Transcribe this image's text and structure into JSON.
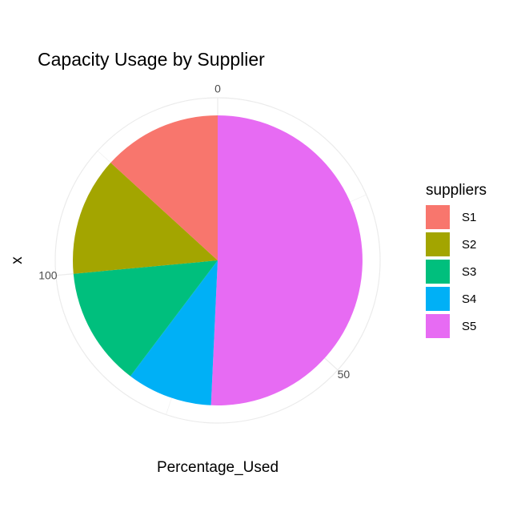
{
  "chart_data": {
    "type": "pie",
    "title": "Capacity Usage by Supplier",
    "xlabel": "Percentage_Used",
    "ylabel": "x",
    "theta_ticks": [
      {
        "value": 0,
        "label": "0"
      },
      {
        "value": 50,
        "label": "50"
      },
      {
        "value": 100,
        "label": "100"
      }
    ],
    "theta_max": 136,
    "grid": true,
    "legend": {
      "title": "suppliers",
      "position": "right"
    },
    "series": [
      {
        "name": "S1",
        "value": 18,
        "color": "#F8766D"
      },
      {
        "name": "S2",
        "value": 18,
        "color": "#A3A500"
      },
      {
        "name": "S3",
        "value": 18,
        "color": "#00BF7D"
      },
      {
        "name": "S4",
        "value": 13,
        "color": "#00B0F6"
      },
      {
        "name": "S5",
        "value": 69,
        "color": "#E76BF3"
      }
    ]
  }
}
